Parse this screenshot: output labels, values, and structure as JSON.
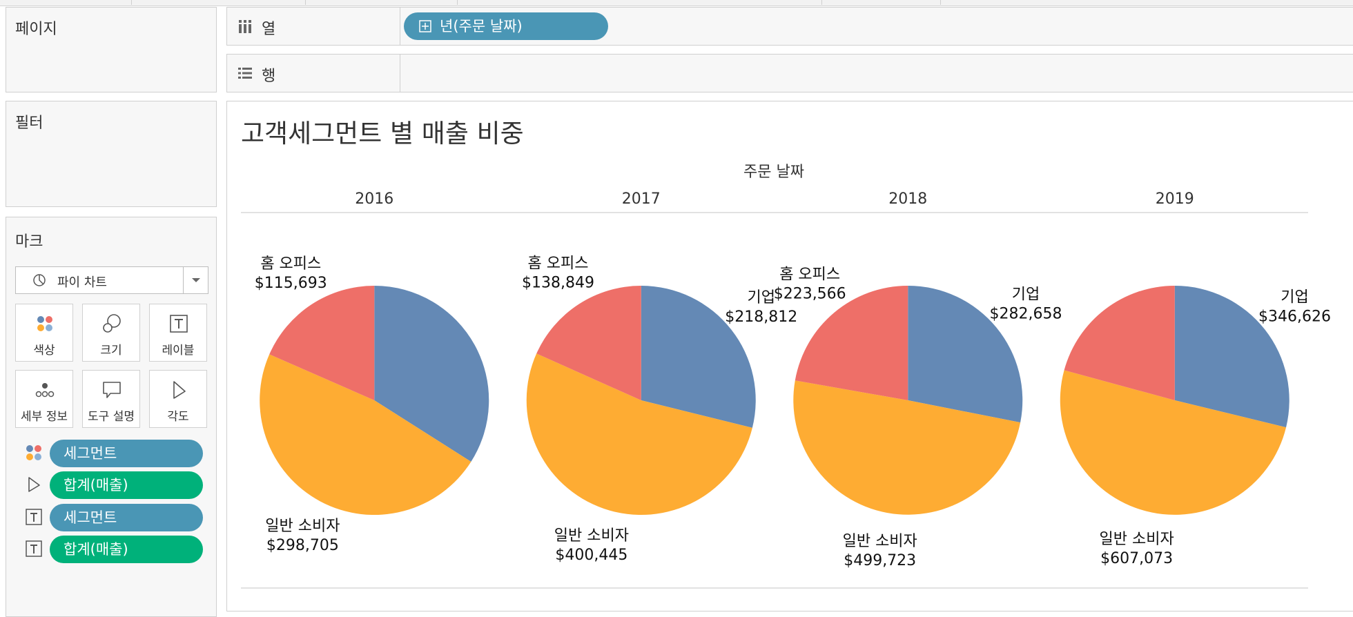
{
  "left": {
    "pages_title": "페이지",
    "filters_title": "필터",
    "marks_title": "마크",
    "mark_type": "파이 차트",
    "buttons": {
      "color": "색상",
      "size": "크기",
      "label": "레이블",
      "detail": "세부 정보",
      "tooltip": "도구 설명",
      "angle": "각도"
    },
    "mark_pills": [
      {
        "label": "세그먼트",
        "icon": "color-dots-icon",
        "color": "#4a96b5"
      },
      {
        "label": "합계(매출)",
        "icon": "angle-icon",
        "color": "#00b17a"
      },
      {
        "label": "세그먼트",
        "icon": "label-icon",
        "color": "#4a96b5"
      },
      {
        "label": "합계(매출)",
        "icon": "label-icon",
        "color": "#00b17a"
      }
    ]
  },
  "shelves": {
    "columns_label": "열",
    "columns_pill": "년(주문 날짜)",
    "rows_label": "행"
  },
  "viz": {
    "title": "고객세그먼트 별 매출 비중",
    "header_title": "주문 날짜"
  },
  "colors": {
    "corporate": "#6489b5",
    "consumer": "#feac33",
    "home_office": "#ee6f68",
    "pill_blue": "#4a96b5",
    "pill_green": "#00b17a"
  },
  "chart_data": {
    "type": "pie",
    "title": "고객세그먼트 별 매출 비중",
    "facet_label": "주문 날짜",
    "categories": [
      "기업",
      "일반 소비자",
      "홈 오피스"
    ],
    "pies": [
      {
        "year": "2016",
        "values": [
          {
            "segment": "기업",
            "value": 213500,
            "shown": false
          },
          {
            "segment": "일반 소비자",
            "value": 298705,
            "shown": true
          },
          {
            "segment": "홈 오피스",
            "value": 115693,
            "shown": true
          }
        ]
      },
      {
        "year": "2017",
        "values": [
          {
            "segment": "기업",
            "value": 218812,
            "shown": true
          },
          {
            "segment": "일반 소비자",
            "value": 400445,
            "shown": true
          },
          {
            "segment": "홈 오피스",
            "value": 138849,
            "shown": true
          }
        ]
      },
      {
        "year": "2018",
        "values": [
          {
            "segment": "기업",
            "value": 282658,
            "shown": true
          },
          {
            "segment": "일반 소비자",
            "value": 499723,
            "shown": true
          },
          {
            "segment": "홈 오피스",
            "value": 223566,
            "shown": true
          }
        ]
      },
      {
        "year": "2019",
        "values": [
          {
            "segment": "기업",
            "value": 346626,
            "shown": true
          },
          {
            "segment": "일반 소비자",
            "value": 607073,
            "shown": true
          },
          {
            "segment": "홈 오피스",
            "value": 250000,
            "shown": false
          }
        ]
      }
    ]
  }
}
